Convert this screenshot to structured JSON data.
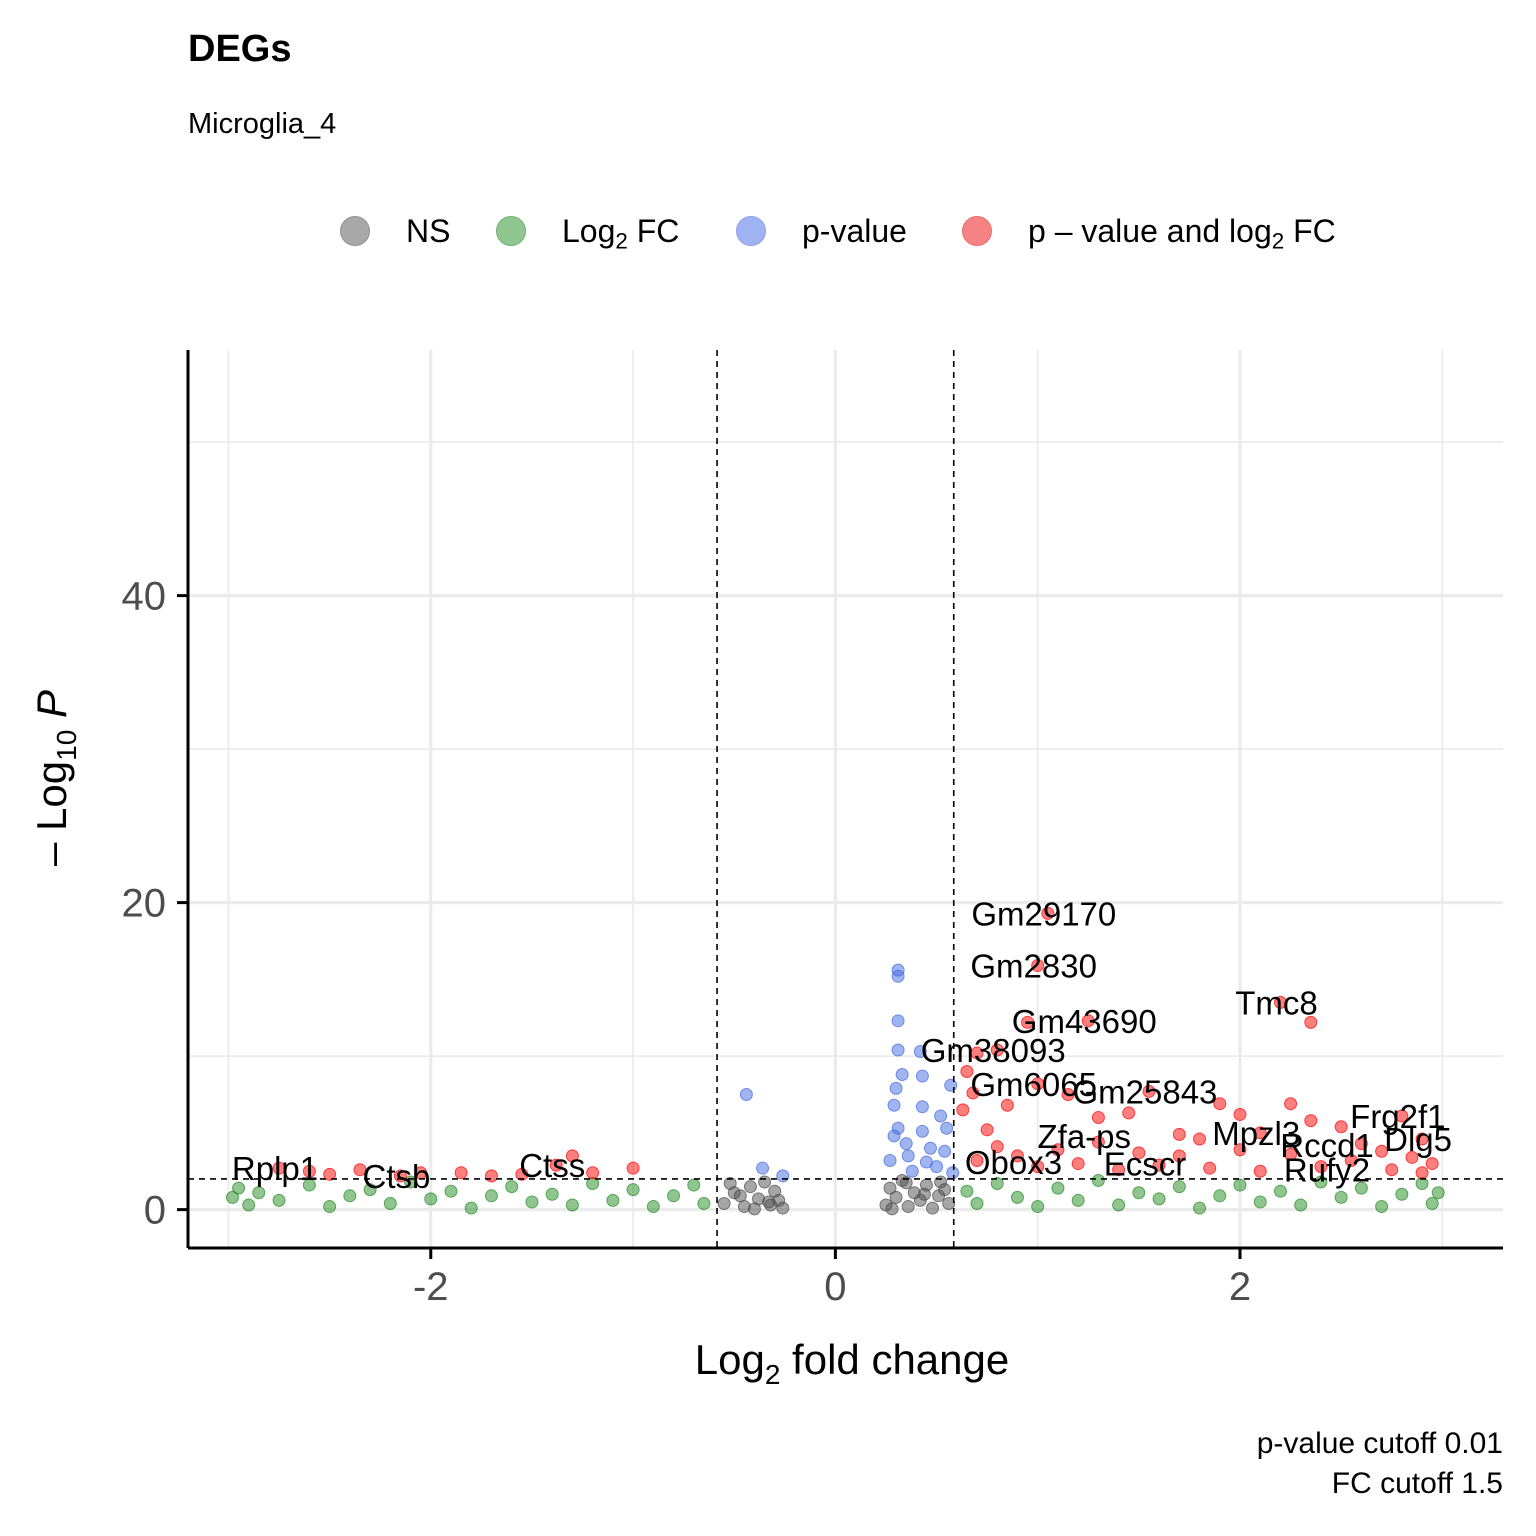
{
  "chart_data": {
    "type": "scatter",
    "title": "DEGs",
    "subtitle": "Microglia_4",
    "xlabel": "Log2 fold change",
    "ylabel": "-Log10 P",
    "xlim": [
      -3.2,
      3.3
    ],
    "ylim": [
      -2.5,
      56
    ],
    "x_ticks": [
      -2,
      0,
      2
    ],
    "y_ticks": [
      0,
      20,
      40
    ],
    "grid": true,
    "legend_position": "top",
    "legend": [
      {
        "key": "ns",
        "label": "NS",
        "color": "#4d4d4d"
      },
      {
        "key": "fc",
        "label": "Log2 FC",
        "color": "#228b22"
      },
      {
        "key": "p",
        "label": "p-value",
        "color": "#4169e1"
      },
      {
        "key": "both",
        "label": "p – value and log2 FC",
        "color": "#ff0000"
      }
    ],
    "cutoffs": {
      "p_value_cutoff": 0.01,
      "fc_cutoff": 1.5,
      "log2fc_lines": [
        -0.585,
        0.585
      ],
      "neglog10p_line": 2
    },
    "caption_lines": [
      "p-value cutoff  0.01",
      "FC cutoff  1.5"
    ],
    "series": [
      {
        "name": "NS",
        "key": "ns",
        "points": [
          [
            -0.55,
            0.4
          ],
          [
            -0.5,
            1.1
          ],
          [
            -0.45,
            0.2
          ],
          [
            -0.42,
            1.5
          ],
          [
            -0.38,
            0.7
          ],
          [
            -0.35,
            1.8
          ],
          [
            -0.32,
            0.3
          ],
          [
            -0.3,
            1.2
          ],
          [
            -0.28,
            0.6
          ],
          [
            -0.26,
            0.1
          ],
          [
            -0.52,
            1.7
          ],
          [
            -0.47,
            0.9
          ],
          [
            -0.4,
            0.05
          ],
          [
            -0.33,
            0.5
          ],
          [
            0.25,
            0.3
          ],
          [
            0.27,
            1.4
          ],
          [
            0.3,
            0.8
          ],
          [
            0.33,
            1.9
          ],
          [
            0.36,
            0.2
          ],
          [
            0.39,
            1.1
          ],
          [
            0.42,
            0.6
          ],
          [
            0.45,
            1.6
          ],
          [
            0.48,
            0.1
          ],
          [
            0.51,
            0.9
          ],
          [
            0.54,
            1.3
          ],
          [
            0.56,
            0.4
          ],
          [
            0.28,
            0.05
          ],
          [
            0.35,
            1.75
          ],
          [
            0.44,
            1.0
          ],
          [
            0.52,
            1.8
          ]
        ]
      },
      {
        "name": "Log2 FC",
        "key": "fc",
        "points": [
          [
            -2.98,
            0.8
          ],
          [
            -2.95,
            1.4
          ],
          [
            -2.9,
            0.3
          ],
          [
            -2.85,
            1.1
          ],
          [
            -2.75,
            0.6
          ],
          [
            -2.6,
            1.6
          ],
          [
            -2.5,
            0.2
          ],
          [
            -2.4,
            0.9
          ],
          [
            -2.3,
            1.3
          ],
          [
            -2.2,
            0.4
          ],
          [
            -2.1,
            1.8
          ],
          [
            -2.0,
            0.7
          ],
          [
            -1.9,
            1.2
          ],
          [
            -1.8,
            0.1
          ],
          [
            -1.7,
            0.9
          ],
          [
            -1.6,
            1.5
          ],
          [
            -1.5,
            0.5
          ],
          [
            -1.4,
            1.0
          ],
          [
            -1.3,
            0.3
          ],
          [
            -1.2,
            1.7
          ],
          [
            -1.1,
            0.6
          ],
          [
            -1.0,
            1.3
          ],
          [
            -0.9,
            0.2
          ],
          [
            -0.8,
            0.9
          ],
          [
            -0.7,
            1.6
          ],
          [
            -0.65,
            0.4
          ],
          [
            0.65,
            1.2
          ],
          [
            0.7,
            0.4
          ],
          [
            0.8,
            1.7
          ],
          [
            0.9,
            0.8
          ],
          [
            1.0,
            0.2
          ],
          [
            1.1,
            1.4
          ],
          [
            1.2,
            0.6
          ],
          [
            1.3,
            1.9
          ],
          [
            1.4,
            0.3
          ],
          [
            1.5,
            1.1
          ],
          [
            1.6,
            0.7
          ],
          [
            1.7,
            1.5
          ],
          [
            1.8,
            0.1
          ],
          [
            1.9,
            0.9
          ],
          [
            2.0,
            1.6
          ],
          [
            2.1,
            0.5
          ],
          [
            2.2,
            1.2
          ],
          [
            2.3,
            0.3
          ],
          [
            2.4,
            1.8
          ],
          [
            2.5,
            0.8
          ],
          [
            2.6,
            1.4
          ],
          [
            2.7,
            0.2
          ],
          [
            2.8,
            1.0
          ],
          [
            2.9,
            1.7
          ],
          [
            2.95,
            0.4
          ],
          [
            2.98,
            1.1
          ]
        ]
      },
      {
        "name": "p-value",
        "key": "p",
        "points": [
          [
            0.31,
            15.6
          ],
          [
            0.31,
            15.2
          ],
          [
            0.31,
            12.3
          ],
          [
            0.31,
            10.4
          ],
          [
            0.42,
            10.3
          ],
          [
            0.33,
            8.8
          ],
          [
            0.43,
            8.7
          ],
          [
            0.3,
            7.9
          ],
          [
            0.29,
            6.8
          ],
          [
            0.31,
            5.3
          ],
          [
            0.43,
            6.7
          ],
          [
            0.52,
            6.1
          ],
          [
            0.29,
            4.8
          ],
          [
            0.35,
            4.3
          ],
          [
            0.43,
            5.1
          ],
          [
            0.47,
            4.0
          ],
          [
            0.55,
            5.3
          ],
          [
            0.27,
            3.2
          ],
          [
            0.36,
            3.5
          ],
          [
            0.45,
            3.1
          ],
          [
            0.54,
            3.8
          ],
          [
            0.38,
            2.5
          ],
          [
            0.5,
            2.8
          ],
          [
            -0.44,
            7.5
          ],
          [
            -0.36,
            2.7
          ],
          [
            -0.26,
            2.2
          ],
          [
            0.58,
            2.4
          ],
          [
            0.57,
            8.1
          ]
        ]
      },
      {
        "name": "p - value and log2 FC",
        "key": "both",
        "points": [
          [
            -2.75,
            2.7
          ],
          [
            -2.6,
            2.5
          ],
          [
            -2.5,
            2.3
          ],
          [
            -2.35,
            2.6
          ],
          [
            -2.15,
            2.2
          ],
          [
            -2.05,
            2.4
          ],
          [
            -1.85,
            2.4
          ],
          [
            -1.7,
            2.2
          ],
          [
            -1.55,
            2.3
          ],
          [
            -1.38,
            2.9
          ],
          [
            -1.3,
            3.5
          ],
          [
            -1.2,
            2.4
          ],
          [
            -1.0,
            2.7
          ],
          [
            0.65,
            9.0
          ],
          [
            0.7,
            10.2
          ],
          [
            0.8,
            10.4
          ],
          [
            0.63,
            6.5
          ],
          [
            0.68,
            7.6
          ],
          [
            0.75,
            5.2
          ],
          [
            0.85,
            6.8
          ],
          [
            0.95,
            12.2
          ],
          [
            1.0,
            8.2
          ],
          [
            1.05,
            19.3
          ],
          [
            1.0,
            15.9
          ],
          [
            1.15,
            7.5
          ],
          [
            1.25,
            12.3
          ],
          [
            1.3,
            6.0
          ],
          [
            1.45,
            6.3
          ],
          [
            1.55,
            7.7
          ],
          [
            1.7,
            4.9
          ],
          [
            1.8,
            4.6
          ],
          [
            1.9,
            6.9
          ],
          [
            2.0,
            6.2
          ],
          [
            2.1,
            5.0
          ],
          [
            2.2,
            13.5
          ],
          [
            2.35,
            12.2
          ],
          [
            2.25,
            6.9
          ],
          [
            2.35,
            5.8
          ],
          [
            2.5,
            5.4
          ],
          [
            2.6,
            4.3
          ],
          [
            2.8,
            6.1
          ],
          [
            2.9,
            4.6
          ],
          [
            2.95,
            3.0
          ],
          [
            2.7,
            3.8
          ],
          [
            2.85,
            3.4
          ],
          [
            0.7,
            3.2
          ],
          [
            0.8,
            4.1
          ],
          [
            0.9,
            3.5
          ],
          [
            1.0,
            2.8
          ],
          [
            1.1,
            3.9
          ],
          [
            1.2,
            3.0
          ],
          [
            1.3,
            4.4
          ],
          [
            1.4,
            2.6
          ],
          [
            1.5,
            3.7
          ],
          [
            1.6,
            2.9
          ],
          [
            1.7,
            3.5
          ],
          [
            1.85,
            2.7
          ],
          [
            2.0,
            3.9
          ],
          [
            2.1,
            2.5
          ],
          [
            2.25,
            3.6
          ],
          [
            2.4,
            2.8
          ],
          [
            2.55,
            3.2
          ],
          [
            2.75,
            2.6
          ],
          [
            2.9,
            2.4
          ]
        ]
      }
    ],
    "labels": [
      {
        "text": "Gm29170",
        "x": 1.05,
        "y": 19.3
      },
      {
        "text": "Gm2830",
        "x": 1.0,
        "y": 15.9
      },
      {
        "text": "Gm43690",
        "x": 1.25,
        "y": 12.3
      },
      {
        "text": "Tmc8",
        "x": 2.2,
        "y": 13.5
      },
      {
        "text": "Gm38093",
        "x": 0.8,
        "y": 10.4
      },
      {
        "text": "Gm6065",
        "x": 1.0,
        "y": 8.2
      },
      {
        "text": "Gm25843",
        "x": 1.55,
        "y": 7.7
      },
      {
        "text": "Mpzl3",
        "x": 2.1,
        "y": 5.0
      },
      {
        "text": "Frg2f1",
        "x": 2.8,
        "y": 6.1
      },
      {
        "text": "Zfa-ps",
        "x": 1.25,
        "y": 4.8
      },
      {
        "text": "Rccd1",
        "x": 2.45,
        "y": 4.2
      },
      {
        "text": "Dlg5",
        "x": 2.9,
        "y": 4.6
      },
      {
        "text": "Obox3",
        "x": 0.9,
        "y": 3.1
      },
      {
        "text": "Ecscr",
        "x": 1.55,
        "y": 3.0
      },
      {
        "text": "Rufy2",
        "x": 2.45,
        "y": 2.6
      },
      {
        "text": "Rplp1",
        "x": -2.75,
        "y": 2.7
      },
      {
        "text": "Ctsb",
        "x": -2.15,
        "y": 2.2
      },
      {
        "text": "Ctss",
        "x": -1.38,
        "y": 2.9
      }
    ]
  }
}
